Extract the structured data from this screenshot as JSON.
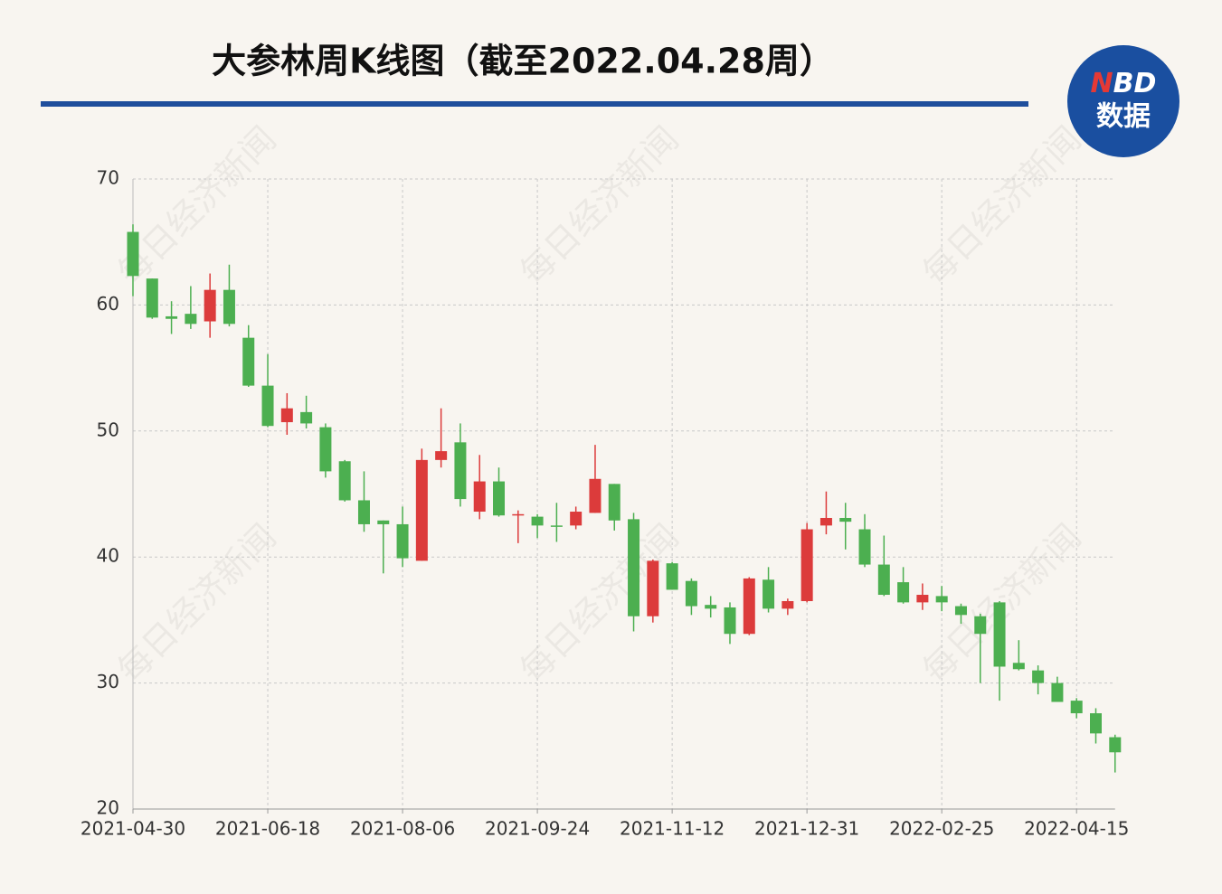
{
  "chart_data": {
    "type": "candlestick",
    "title": "大参林周K线图（截至2022.04.28周）",
    "watermark": "每日经济新闻",
    "logo": {
      "text": [
        "N",
        "BD"
      ],
      "subtext": "数据"
    },
    "categories": [
      "2021-04-30",
      null,
      null,
      null,
      null,
      null,
      null,
      "2021-06-18",
      null,
      null,
      null,
      null,
      null,
      null,
      "2021-08-06",
      null,
      null,
      null,
      null,
      null,
      null,
      "2021-09-24",
      null,
      null,
      null,
      null,
      null,
      null,
      "2021-11-12",
      null,
      null,
      null,
      null,
      null,
      null,
      "2021-12-31",
      null,
      null,
      null,
      null,
      null,
      null,
      "2022-02-25",
      null,
      null,
      null,
      null,
      null,
      null,
      "2022-04-15",
      null,
      null
    ],
    "open": [
      65.8,
      62.1,
      59.1,
      59.3,
      58.7,
      61.2,
      57.4,
      53.6,
      50.7,
      51.5,
      50.3,
      47.6,
      44.5,
      42.9,
      42.6,
      39.7,
      47.7,
      49.1,
      43.6,
      46.0,
      43.3,
      43.2,
      42.5,
      42.5,
      43.5,
      45.8,
      43.0,
      35.3,
      39.5,
      38.1,
      36.2,
      36.0,
      33.9,
      38.2,
      35.9,
      36.5,
      42.5,
      43.1,
      42.2,
      39.4,
      38.0,
      36.4,
      36.9,
      36.1,
      35.3,
      36.4,
      31.6,
      31.0,
      30.0,
      28.6,
      27.6,
      25.7
    ],
    "high": [
      66.4,
      62.1,
      60.3,
      61.5,
      62.5,
      63.2,
      58.4,
      56.1,
      53.0,
      52.8,
      50.6,
      47.7,
      46.8,
      42.9,
      44.0,
      48.6,
      51.8,
      50.6,
      48.1,
      47.1,
      43.7,
      43.4,
      44.3,
      44.0,
      48.9,
      45.8,
      43.5,
      39.8,
      39.6,
      38.3,
      36.9,
      36.4,
      38.4,
      39.2,
      36.7,
      42.7,
      45.2,
      44.3,
      43.4,
      41.7,
      39.2,
      37.9,
      37.7,
      36.3,
      35.5,
      36.5,
      33.4,
      31.4,
      30.5,
      28.8,
      28.0,
      25.9
    ],
    "low": [
      60.7,
      58.9,
      57.7,
      58.1,
      57.4,
      58.3,
      53.5,
      50.3,
      49.7,
      50.2,
      46.3,
      44.4,
      42.0,
      38.7,
      39.2,
      39.7,
      47.1,
      44.0,
      43.0,
      43.2,
      41.1,
      41.5,
      41.2,
      42.2,
      43.5,
      42.1,
      34.1,
      34.8,
      37.4,
      35.4,
      35.2,
      33.1,
      33.8,
      35.6,
      35.4,
      36.4,
      41.8,
      40.6,
      39.2,
      36.9,
      36.3,
      35.8,
      35.7,
      34.7,
      30.0,
      28.6,
      31.0,
      29.1,
      28.5,
      27.2,
      25.2,
      22.9
    ],
    "close": [
      62.3,
      59.0,
      58.9,
      58.5,
      61.2,
      58.5,
      53.6,
      50.4,
      51.8,
      50.6,
      46.8,
      44.5,
      42.6,
      42.6,
      39.9,
      47.7,
      48.4,
      44.6,
      46.0,
      43.3,
      43.4,
      42.5,
      42.4,
      43.6,
      46.2,
      42.9,
      35.3,
      39.7,
      37.4,
      36.1,
      35.9,
      33.9,
      38.3,
      35.9,
      36.5,
      42.2,
      43.1,
      42.8,
      39.4,
      37.0,
      36.4,
      37.0,
      36.4,
      35.4,
      33.9,
      31.3,
      31.1,
      30.0,
      28.5,
      27.6,
      26.0,
      24.5
    ],
    "up_color": "#dc3b3b",
    "down_color": "#4caf50",
    "ylim": [
      20,
      70
    ],
    "yticks": [
      20,
      30,
      40,
      50,
      60,
      70
    ],
    "grid": true
  }
}
